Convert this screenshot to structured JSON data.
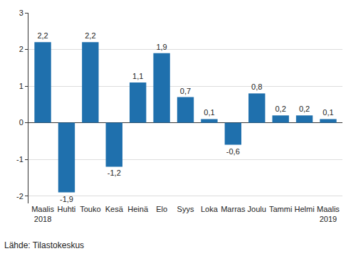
{
  "chart_data": {
    "type": "bar",
    "categories": [
      "Maalis\n2018",
      "Huhti",
      "Touko",
      "Kesä",
      "Heinä",
      "Elo",
      "Syys",
      "Loka",
      "Marras",
      "Joulu",
      "Tammi",
      "Helmi",
      "Maalis\n2019"
    ],
    "values": [
      2.2,
      -1.9,
      2.2,
      -1.2,
      1.1,
      1.9,
      0.7,
      0.1,
      -0.6,
      0.8,
      0.2,
      0.2,
      0.1
    ],
    "value_labels": [
      "2,2",
      "-1,9",
      "2,2",
      "-1,2",
      "1,1",
      "1,9",
      "0,7",
      "0,1",
      "-0,6",
      "0,8",
      "0,2",
      "0,2",
      "0,1"
    ],
    "color": "#1f70ad",
    "ylim": [
      -2.2,
      3
    ],
    "yticks": [
      -2,
      -1,
      0,
      1,
      2,
      3
    ],
    "grid": true,
    "data_labels": true,
    "annotations": [
      "Lähde: Tilastokeskus"
    ]
  }
}
